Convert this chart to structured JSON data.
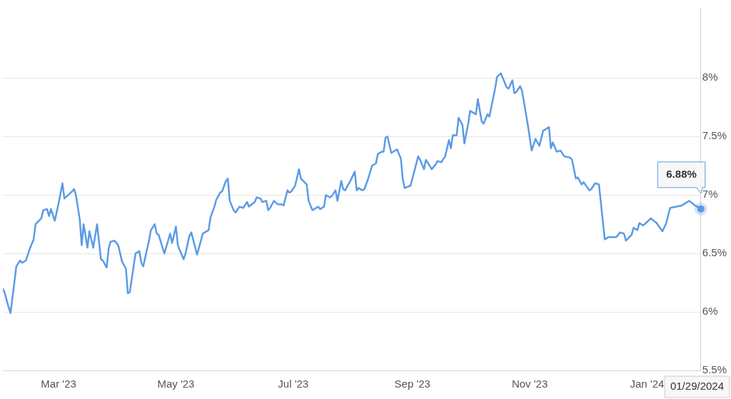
{
  "chart_data": {
    "type": "line",
    "xlim": [
      "2023-01-31",
      "2024-01-29"
    ],
    "ylim": [
      5.5,
      8.6
    ],
    "xticks": [
      {
        "value": "2023-03-01",
        "label": "Mar '23"
      },
      {
        "value": "2023-05-01",
        "label": "May '23"
      },
      {
        "value": "2023-07-01",
        "label": "Jul '23"
      },
      {
        "value": "2023-09-01",
        "label": "Sep '23"
      },
      {
        "value": "2023-11-01",
        "label": "Nov '23"
      },
      {
        "value": "2024-01-01",
        "label": "Jan '24"
      }
    ],
    "yticks": [
      {
        "value": 5.5,
        "label": "5.5%"
      },
      {
        "value": 6,
        "label": "6%"
      },
      {
        "value": 6.5,
        "label": "6.5%"
      },
      {
        "value": 7,
        "label": "7%"
      },
      {
        "value": 7.5,
        "label": "7.5%"
      },
      {
        "value": 8,
        "label": "8%"
      }
    ],
    "grid": "y",
    "legend": false,
    "marker": "none",
    "line_style": "solid",
    "annotations": [
      {
        "text": "6.88%",
        "x": "2024-01-29",
        "y": 6.88
      },
      "01/29/2024"
    ],
    "series": [
      {
        "color": "#5b9be6",
        "x": [
          "2023-01-31",
          "2023-02-01",
          "2023-02-03",
          "2023-02-04",
          "2023-02-07",
          "2023-02-09",
          "2023-02-10",
          "2023-02-12",
          "2023-02-14",
          "2023-02-16",
          "2023-02-17",
          "2023-02-20",
          "2023-02-21",
          "2023-02-23",
          "2023-02-24",
          "2023-02-25",
          "2023-02-27",
          "2023-03-01",
          "2023-03-03",
          "2023-03-04",
          "2023-03-08",
          "2023-03-09",
          "2023-03-10",
          "2023-03-12",
          "2023-03-13",
          "2023-03-14",
          "2023-03-16",
          "2023-03-17",
          "2023-03-19",
          "2023-03-21",
          "2023-03-23",
          "2023-03-24",
          "2023-03-26",
          "2023-03-27",
          "2023-03-28",
          "2023-03-30",
          "2023-04-01",
          "2023-04-03",
          "2023-04-05",
          "2023-04-06",
          "2023-04-07",
          "2023-04-10",
          "2023-04-12",
          "2023-04-13",
          "2023-04-14",
          "2023-04-17",
          "2023-04-18",
          "2023-04-20",
          "2023-04-21",
          "2023-04-22",
          "2023-04-25",
          "2023-04-28",
          "2023-04-29",
          "2023-05-01",
          "2023-05-02",
          "2023-05-04",
          "2023-05-05",
          "2023-05-06",
          "2023-05-08",
          "2023-05-09",
          "2023-05-12",
          "2023-05-13",
          "2023-05-15",
          "2023-05-18",
          "2023-05-19",
          "2023-05-21",
          "2023-05-22",
          "2023-05-24",
          "2023-05-25",
          "2023-05-27",
          "2023-05-28",
          "2023-05-29",
          "2023-05-31",
          "2023-06-01",
          "2023-06-03",
          "2023-06-05",
          "2023-06-07",
          "2023-06-08",
          "2023-06-11",
          "2023-06-12",
          "2023-06-14",
          "2023-06-15",
          "2023-06-17",
          "2023-06-18",
          "2023-06-19",
          "2023-06-21",
          "2023-06-23",
          "2023-06-25",
          "2023-06-26",
          "2023-06-28",
          "2023-06-29",
          "2023-06-30",
          "2023-07-02",
          "2023-07-04",
          "2023-07-05",
          "2023-07-08",
          "2023-07-09",
          "2023-07-11",
          "2023-07-14",
          "2023-07-15",
          "2023-07-17",
          "2023-07-18",
          "2023-07-20",
          "2023-07-21",
          "2023-07-23",
          "2023-07-24",
          "2023-07-26",
          "2023-07-27",
          "2023-07-28",
          "2023-07-30",
          "2023-07-31",
          "2023-08-02",
          "2023-08-03",
          "2023-08-04",
          "2023-08-06",
          "2023-08-07",
          "2023-08-09",
          "2023-08-11",
          "2023-08-13",
          "2023-08-14",
          "2023-08-16",
          "2023-08-17",
          "2023-08-18",
          "2023-08-19",
          "2023-08-21",
          "2023-08-24",
          "2023-08-26",
          "2023-08-27",
          "2023-08-28",
          "2023-08-31",
          "2023-09-04",
          "2023-09-05",
          "2023-09-07",
          "2023-09-08",
          "2023-09-10",
          "2023-09-11",
          "2023-09-13",
          "2023-09-14",
          "2023-09-16",
          "2023-09-18",
          "2023-09-20",
          "2023-09-21",
          "2023-09-22",
          "2023-09-24",
          "2023-09-25",
          "2023-09-27",
          "2023-09-28",
          "2023-09-30",
          "2023-10-01",
          "2023-10-04",
          "2023-10-05",
          "2023-10-07",
          "2023-10-08",
          "2023-10-10",
          "2023-10-11",
          "2023-10-14",
          "2023-10-15",
          "2023-10-17",
          "2023-10-20",
          "2023-10-21",
          "2023-10-23",
          "2023-10-24",
          "2023-10-25",
          "2023-10-27",
          "2023-10-28",
          "2023-10-31",
          "2023-11-02",
          "2023-11-04",
          "2023-11-06",
          "2023-11-08",
          "2023-11-11",
          "2023-11-12",
          "2023-11-13",
          "2023-11-15",
          "2023-11-17",
          "2023-11-19",
          "2023-11-22",
          "2023-11-23",
          "2023-11-25",
          "2023-11-26",
          "2023-11-28",
          "2023-11-29",
          "2023-12-02",
          "2023-12-03",
          "2023-12-05",
          "2023-12-07",
          "2023-12-10",
          "2023-12-12",
          "2023-12-16",
          "2023-12-18",
          "2023-12-20",
          "2023-12-21",
          "2023-12-24",
          "2023-12-25",
          "2023-12-27",
          "2023-12-28",
          "2023-12-30",
          "2024-01-03",
          "2024-01-06",
          "2024-01-09",
          "2024-01-11",
          "2024-01-13",
          "2024-01-19",
          "2024-01-23",
          "2024-01-26",
          "2024-01-29"
        ],
        "values": [
          6.2,
          6.16,
          6.04,
          5.99,
          6.39,
          6.44,
          6.42,
          6.44,
          6.54,
          6.62,
          6.75,
          6.8,
          6.87,
          6.88,
          6.82,
          6.88,
          6.78,
          6.93,
          7.1,
          6.97,
          7.03,
          7.05,
          7.0,
          6.79,
          6.57,
          6.75,
          6.55,
          6.69,
          6.55,
          6.75,
          6.45,
          6.44,
          6.38,
          6.54,
          6.6,
          6.61,
          6.57,
          6.43,
          6.37,
          6.16,
          6.17,
          6.5,
          6.52,
          6.42,
          6.39,
          6.61,
          6.7,
          6.75,
          6.67,
          6.66,
          6.5,
          6.67,
          6.59,
          6.73,
          6.57,
          6.49,
          6.45,
          6.5,
          6.65,
          6.68,
          6.49,
          6.55,
          6.67,
          6.7,
          6.81,
          6.9,
          6.96,
          7.02,
          7.03,
          7.12,
          7.14,
          6.95,
          6.87,
          6.85,
          6.9,
          6.89,
          6.94,
          6.9,
          6.94,
          6.98,
          6.97,
          6.94,
          6.95,
          6.87,
          6.89,
          6.95,
          6.92,
          6.92,
          6.91,
          7.04,
          7.02,
          7.03,
          7.08,
          7.22,
          7.14,
          7.09,
          6.95,
          6.87,
          6.9,
          6.88,
          6.9,
          7.0,
          6.98,
          6.99,
          7.04,
          6.95,
          7.12,
          7.05,
          7.04,
          7.1,
          7.13,
          7.2,
          7.04,
          7.06,
          7.04,
          7.05,
          7.14,
          7.25,
          7.27,
          7.35,
          7.37,
          7.37,
          7.49,
          7.5,
          7.36,
          7.39,
          7.31,
          7.13,
          7.06,
          7.08,
          7.33,
          7.3,
          7.22,
          7.3,
          7.25,
          7.22,
          7.26,
          7.29,
          7.28,
          7.33,
          7.47,
          7.4,
          7.51,
          7.51,
          7.66,
          7.6,
          7.44,
          7.61,
          7.72,
          7.69,
          7.82,
          7.63,
          7.61,
          7.69,
          7.67,
          7.91,
          8.01,
          8.04,
          7.92,
          7.91,
          7.98,
          7.87,
          7.88,
          7.93,
          7.89,
          7.6,
          7.38,
          7.48,
          7.42,
          7.55,
          7.58,
          7.4,
          7.45,
          7.37,
          7.38,
          7.33,
          7.32,
          7.3,
          7.14,
          7.15,
          7.09,
          7.11,
          7.04,
          7.05,
          7.1,
          7.09,
          6.62,
          6.64,
          6.64,
          6.68,
          6.67,
          6.61,
          6.66,
          6.72,
          6.7,
          6.76,
          6.74,
          6.8,
          6.76,
          6.69,
          6.76,
          6.89,
          6.91,
          6.95,
          6.91,
          6.88
        ]
      }
    ]
  }
}
